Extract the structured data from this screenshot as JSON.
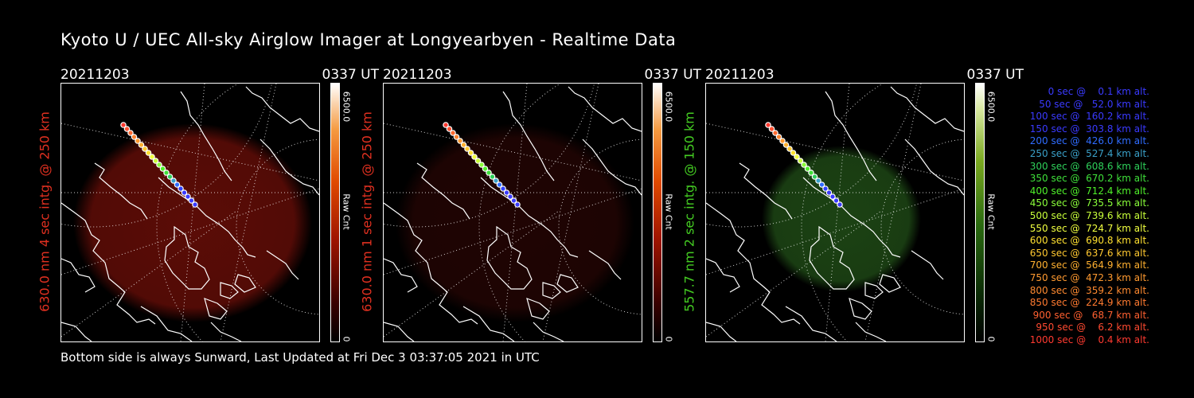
{
  "title": "Kyoto U / UEC All-sky Airglow Imager at Longyearbyen - Realtime Data",
  "footer": "Bottom side is always Sunward, Last Updated at Fri Dec  3 03:37:05 2021 in UTC",
  "panels": [
    {
      "date": "20211203",
      "time": "0337 UT",
      "ylabel": "630.0 nm 4 sec intg. @ 250 km",
      "ylabel_color": "#e03020",
      "cbar_max": "6500.0",
      "cbar_unit": "Raw Cnt",
      "cbar_min": "0",
      "glow_color": "#6b0e08",
      "glow_opacity": 0.85,
      "glow_shape": "wide"
    },
    {
      "date": "20211203",
      "time": "0337 UT",
      "ylabel": "630.0 nm 1 sec intg. @ 250 km",
      "ylabel_color": "#e03020",
      "cbar_max": "6500.0",
      "cbar_unit": "Raw Cnt",
      "cbar_min": "0",
      "glow_color": "#3a0806",
      "glow_opacity": 0.55,
      "glow_shape": "wide"
    },
    {
      "date": "20211203",
      "time": "0337 UT",
      "ylabel": "557.7 nm 2 sec intg. @ 150 km",
      "ylabel_color": "#44cc22",
      "cbar_max": "6500.0",
      "cbar_unit": "Raw Cnt",
      "cbar_min": "0",
      "glow_color": "#1f4a16",
      "glow_opacity": 0.9,
      "glow_shape": "compact"
    }
  ],
  "legend": [
    {
      "text": "   0 sec @    0.1 km alt.",
      "color": "#3a3aff"
    },
    {
      "text": "  50 sec @   52.0 km alt.",
      "color": "#3a3aff"
    },
    {
      "text": " 100 sec @  160.2 km alt.",
      "color": "#3a3aff"
    },
    {
      "text": " 150 sec @  303.8 km alt.",
      "color": "#3a3aff"
    },
    {
      "text": " 200 sec @  426.0 km alt.",
      "color": "#2f6cff"
    },
    {
      "text": " 250 sec @  527.4 km alt.",
      "color": "#3aa0c8"
    },
    {
      "text": " 300 sec @  608.6 km alt.",
      "color": "#2ed05a"
    },
    {
      "text": " 350 sec @  670.2 km alt.",
      "color": "#3fe03a"
    },
    {
      "text": " 400 sec @  712.4 km alt.",
      "color": "#4ff02a"
    },
    {
      "text": " 450 sec @  735.5 km alt.",
      "color": "#8aff3a"
    },
    {
      "text": " 500 sec @  739.6 km alt.",
      "color": "#c8ff3a"
    },
    {
      "text": " 550 sec @  724.7 km alt.",
      "color": "#f0ff40"
    },
    {
      "text": " 600 sec @  690.8 km alt.",
      "color": "#ffe030"
    },
    {
      "text": " 650 sec @  637.6 km alt.",
      "color": "#ffc830"
    },
    {
      "text": " 700 sec @  564.9 km alt.",
      "color": "#ffb030"
    },
    {
      "text": " 750 sec @  472.3 km alt.",
      "color": "#ff9a30"
    },
    {
      "text": " 800 sec @  359.2 km alt.",
      "color": "#ff8a30"
    },
    {
      "text": " 850 sec @  224.9 km alt.",
      "color": "#ff7a30"
    },
    {
      "text": " 900 sec @   68.7 km alt.",
      "color": "#ff6030"
    },
    {
      "text": " 950 sec @    6.2 km alt.",
      "color": "#ff4a30"
    },
    {
      "text": "1000 sec @    0.4 km alt.",
      "color": "#ff3a30"
    }
  ]
}
